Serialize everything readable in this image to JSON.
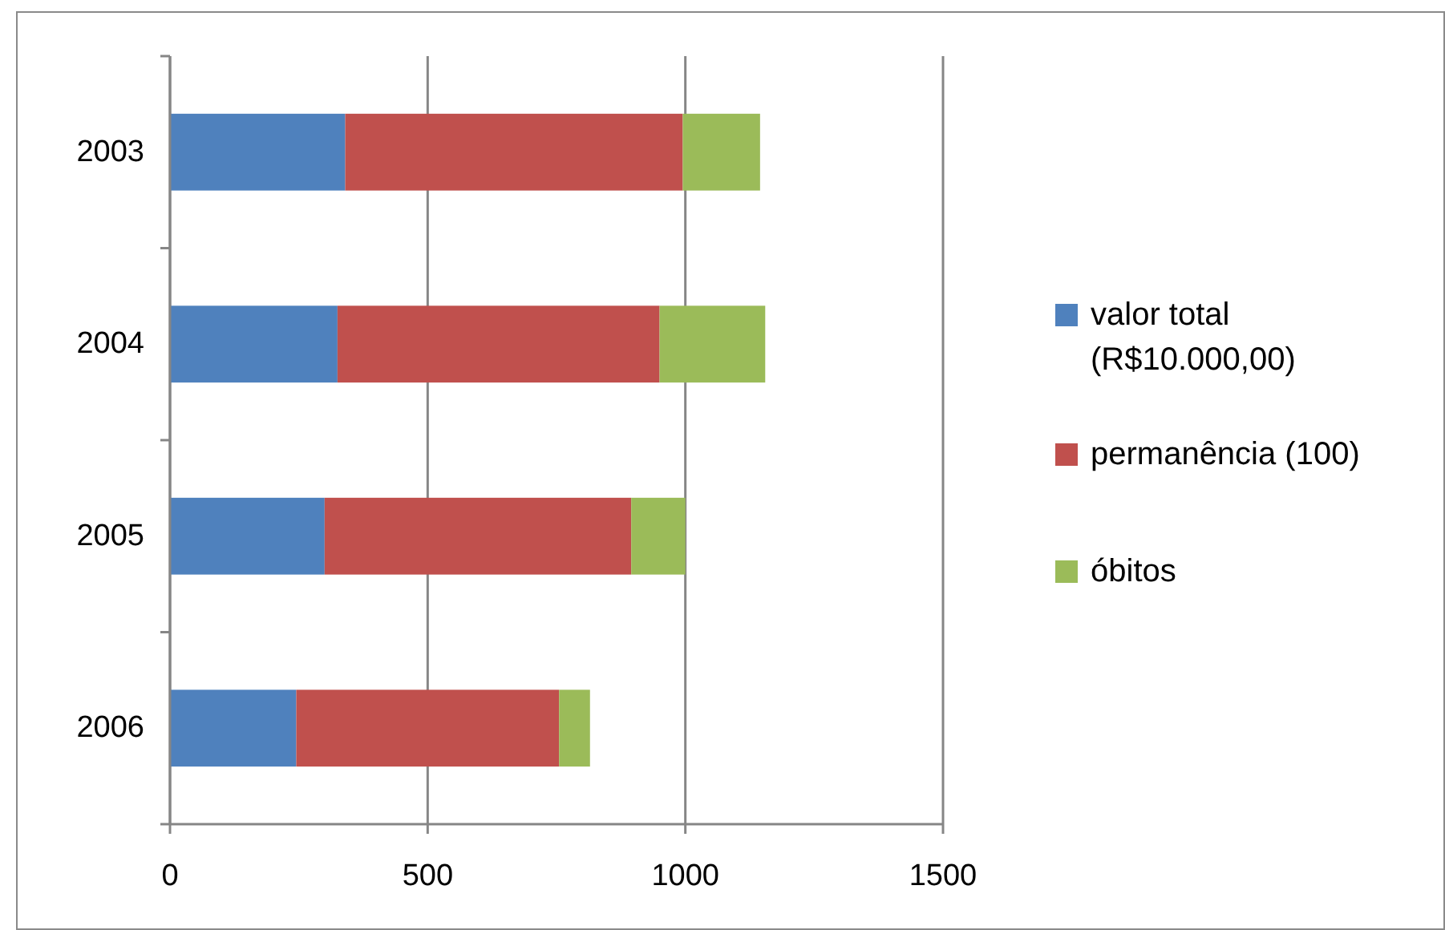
{
  "chart_data": {
    "type": "bar",
    "orientation": "horizontal",
    "stacked": true,
    "categories": [
      "2003",
      "2004",
      "2005",
      "2006"
    ],
    "series": [
      {
        "name": "valor total (R$10.000,00)",
        "color": "#4f81bd",
        "values": [
          340,
          325,
          300,
          245
        ]
      },
      {
        "name": "permanência (100)",
        "color": "#c0504d",
        "values": [
          655,
          625,
          595,
          510
        ]
      },
      {
        "name": "óbitos",
        "color": "#9bbb59",
        "values": [
          150,
          205,
          105,
          60
        ]
      }
    ],
    "xlim": [
      0,
      1500
    ],
    "xticks": [
      0,
      500,
      1000,
      1500
    ],
    "grid": "x",
    "legend": "right"
  }
}
